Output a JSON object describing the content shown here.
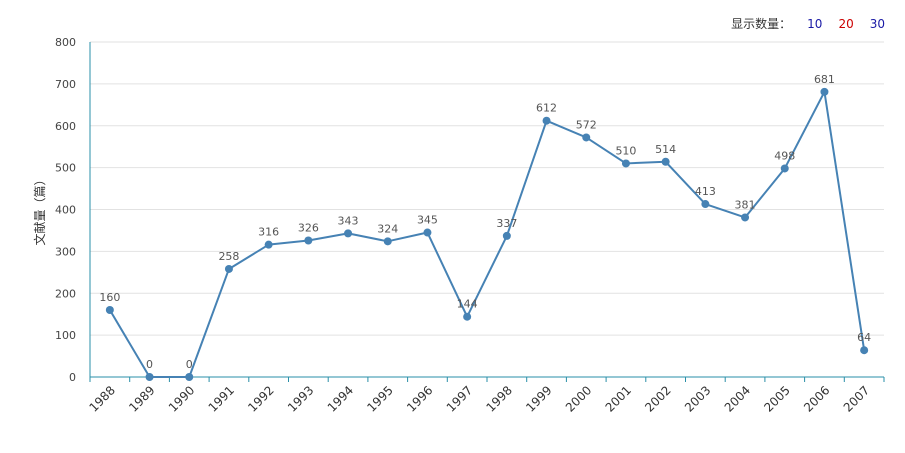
{
  "controls": {
    "label": "显示数量：",
    "options": [
      {
        "text": "10",
        "color": "#1a1aa6"
      },
      {
        "text": "20",
        "color": "#cc0000"
      },
      {
        "text": "30",
        "color": "#1a1aa6"
      }
    ]
  },
  "chart_data": {
    "type": "line",
    "ylabel": "文献量（篇）",
    "xlabel": "",
    "ylim": [
      0,
      800
    ],
    "yticks": [
      0,
      100,
      200,
      300,
      400,
      500,
      600,
      700,
      800
    ],
    "categories": [
      "1988",
      "1989",
      "1990",
      "1991",
      "1992",
      "1993",
      "1994",
      "1995",
      "1996",
      "1997",
      "1998",
      "1999",
      "2000",
      "2001",
      "2002",
      "2003",
      "2004",
      "2005",
      "2006",
      "2007"
    ],
    "series": [
      {
        "values": [
          160,
          0,
          0,
          258,
          316,
          326,
          343,
          324,
          345,
          144,
          337,
          612,
          572,
          510,
          514,
          413,
          381,
          498,
          681,
          64
        ]
      }
    ],
    "data_labels": true,
    "grid": true,
    "line_color": "#4682b4",
    "axis_color": "#2a8fa8",
    "grid_color": "#e2e2e2"
  }
}
